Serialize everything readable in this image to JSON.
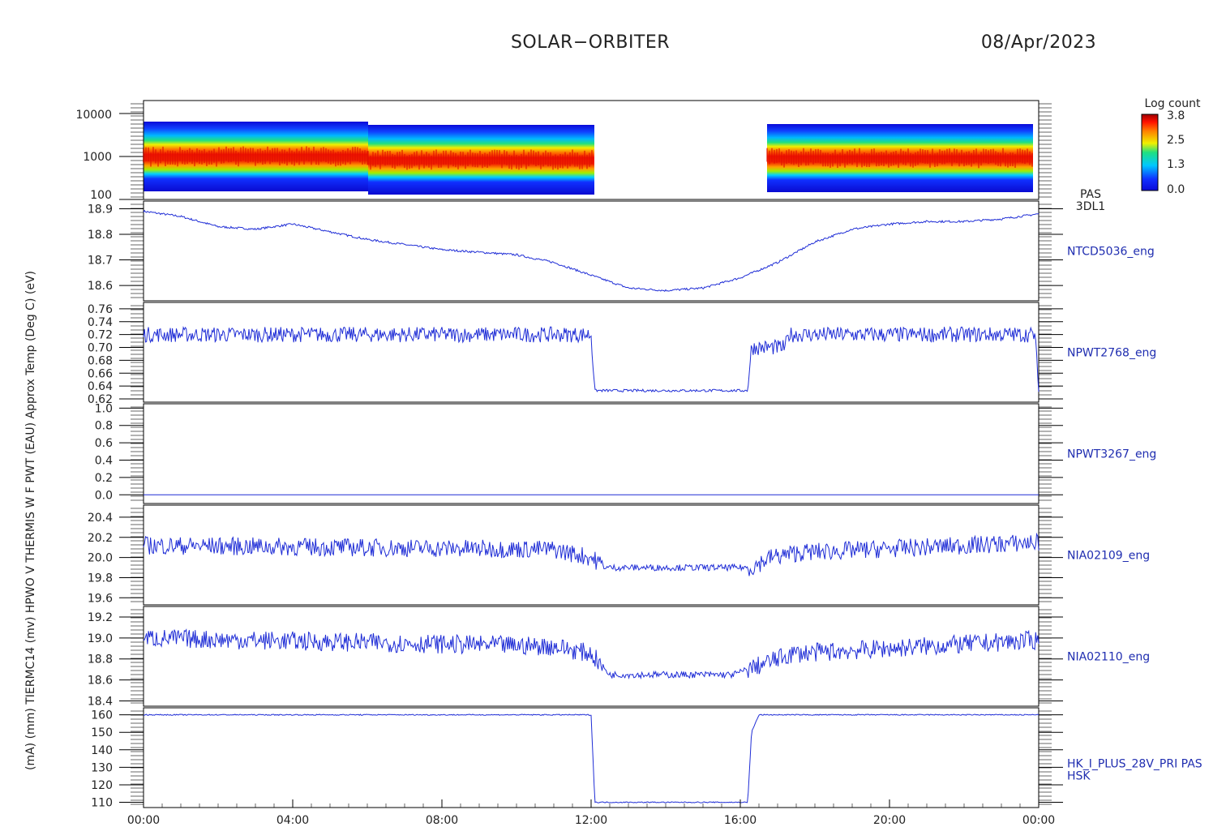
{
  "header": {
    "title": "SOLAR−ORBITER",
    "date": "08/Apr/2023"
  },
  "y_axis_overlap_label": "(mA) (mm) TIERMC14 (mv) HPWO V THERMIS W F PWT (EAU) Approx Temp (Deg C) (eV)",
  "colorbar": {
    "title": "Log count",
    "ticks": [
      "3.8",
      "2.5",
      "1.3",
      "0.0"
    ],
    "range": [
      0.0,
      3.8
    ]
  },
  "x_ticks": [
    "00:00",
    "04:00",
    "08:00",
    "12:00",
    "16:00",
    "20:00",
    "00:00"
  ],
  "colors": {
    "trace": "#1f2dd6",
    "axis": "#000000"
  },
  "chart_data": [
    {
      "type": "heatmap",
      "panel": "PAS spectrogram",
      "side_label": [
        "PAS",
        "3DL1"
      ],
      "y_scale": "log",
      "ylim": [
        100,
        20000
      ],
      "yticks": [
        "10000",
        "1000",
        "100"
      ],
      "x": "hours 0-24",
      "data_gaps_hours": [
        [
          12.1,
          16.7
        ]
      ],
      "peak_energy_ev": 800
    },
    {
      "type": "line",
      "label": "NTCD5036_eng",
      "yticks": [
        "18.9",
        "18.8",
        "18.7",
        "18.6"
      ],
      "ylim": [
        18.54,
        18.93
      ],
      "x": [
        0,
        1,
        2,
        3,
        4,
        5,
        6,
        7,
        8,
        9,
        10,
        11,
        12,
        13,
        14,
        15,
        16,
        17,
        18,
        19,
        20,
        21,
        22,
        23,
        24
      ],
      "y": [
        18.89,
        18.87,
        18.83,
        18.82,
        18.84,
        18.81,
        18.78,
        18.76,
        18.74,
        18.73,
        18.72,
        18.69,
        18.64,
        18.59,
        18.58,
        18.59,
        18.63,
        18.69,
        18.77,
        18.82,
        18.84,
        18.85,
        18.85,
        18.86,
        18.88
      ]
    },
    {
      "type": "line",
      "label": "NPWT2768_eng",
      "yticks": [
        "0.76",
        "0.74",
        "0.72",
        "0.70",
        "0.68",
        "0.66",
        "0.64",
        "0.62"
      ],
      "ylim": [
        0.615,
        0.77
      ],
      "x": [
        0,
        12.0,
        12.1,
        16.2,
        16.3,
        17.2,
        17.3,
        23.9,
        24
      ],
      "y": [
        0.72,
        0.72,
        0.633,
        0.633,
        0.7,
        0.7,
        0.72,
        0.72,
        0.633
      ]
    },
    {
      "type": "line",
      "label": "NPWT3267_eng",
      "yticks": [
        "1.0",
        "0.8",
        "0.6",
        "0.4",
        "0.2",
        "0.0"
      ],
      "ylim": [
        -0.1,
        1.05
      ],
      "x": [
        0,
        24
      ],
      "y": [
        0.0,
        0.0
      ]
    },
    {
      "type": "line",
      "label": "NIA02109_eng",
      "yticks": [
        "20.4",
        "20.2",
        "20.0",
        "19.8",
        "19.6"
      ],
      "ylim": [
        19.53,
        20.52
      ],
      "x": [
        0,
        11,
        12,
        12.4,
        16.3,
        16.8,
        17.6,
        24
      ],
      "y": [
        20.12,
        20.08,
        20.0,
        19.9,
        19.9,
        20.0,
        20.05,
        20.15
      ]
    },
    {
      "type": "line",
      "label": "NIA02110_eng",
      "yticks": [
        "19.2",
        "19.0",
        "18.8",
        "18.6",
        "18.4"
      ],
      "ylim": [
        18.35,
        19.3
      ],
      "x": [
        0,
        11,
        12,
        12.5,
        15.8,
        16.6,
        17.4,
        24
      ],
      "y": [
        19.0,
        18.92,
        18.85,
        18.65,
        18.65,
        18.75,
        18.85,
        18.98
      ]
    },
    {
      "type": "line",
      "label": [
        "HK_I_PLUS_28V_PRI PAS",
        "HSK"
      ],
      "yticks": [
        "160",
        "150",
        "140",
        "130",
        "120",
        "110"
      ],
      "ylim": [
        107,
        164
      ],
      "x": [
        0,
        12.0,
        12.1,
        16.2,
        16.3,
        16.5,
        24
      ],
      "y": [
        160,
        160,
        110,
        110,
        150,
        160,
        160
      ]
    }
  ]
}
